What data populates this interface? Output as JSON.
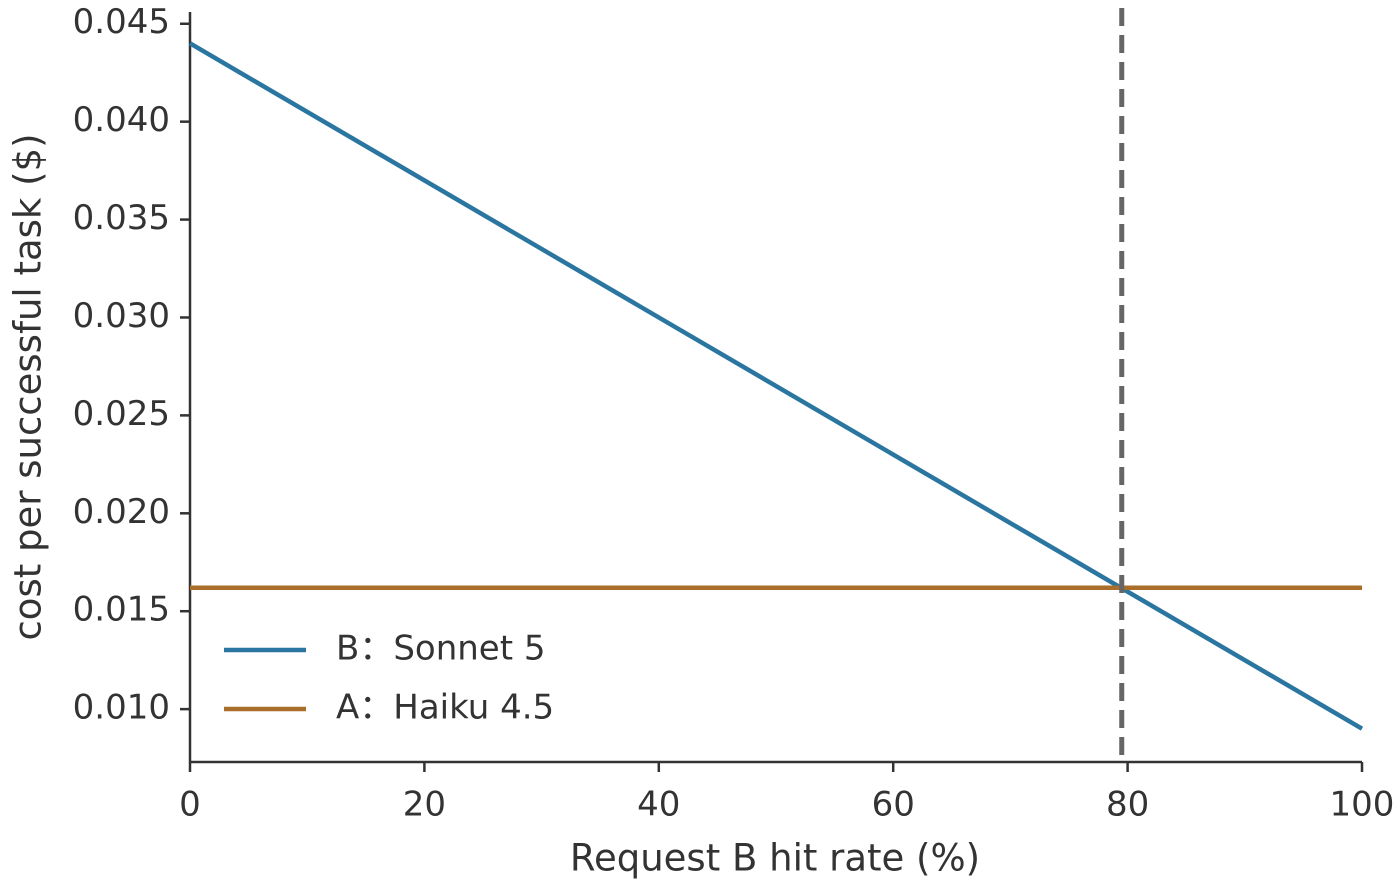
{
  "chart_data": {
    "type": "line",
    "xlabel": "Request B hit rate (%)",
    "ylabel": "cost per successful task ($)",
    "x": [
      0,
      100
    ],
    "series": [
      {
        "name": "B：Sonnet 5",
        "color": "#2a76a0",
        "values": [
          0.044,
          0.009
        ]
      },
      {
        "name": "A：Haiku 4.5",
        "color": "#a86e2a",
        "values": [
          0.0162,
          0.0162
        ]
      }
    ],
    "vline": 79.5,
    "vline_color": "#666666",
    "xlim": [
      0,
      100
    ],
    "xticks": [
      0,
      20,
      40,
      60,
      80,
      100
    ],
    "ylim": [
      0.0073,
      0.0456
    ],
    "yticks": [
      {
        "value": 0.01,
        "label": "0.010"
      },
      0.015,
      {
        "value": 0.02,
        "label": "0.020"
      },
      0.025,
      {
        "value": 0.03,
        "label": "0.030"
      },
      0.035,
      {
        "value": 0.04,
        "label": "0.040"
      },
      0.045
    ],
    "legend": "lower left",
    "grid": false
  }
}
